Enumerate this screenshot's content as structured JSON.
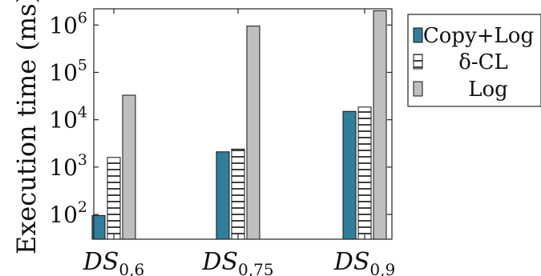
{
  "chart_data": {
    "type": "bar",
    "ylabel": "Execution time (ms)",
    "yscale": "log",
    "ylim": [
      30,
      2200000
    ],
    "grid": false,
    "legend_position": "right",
    "y_ticks": [
      {
        "value": 100,
        "base": "10",
        "exp": "2"
      },
      {
        "value": 1000,
        "base": "10",
        "exp": "3"
      },
      {
        "value": 10000,
        "base": "10",
        "exp": "4"
      },
      {
        "value": 100000,
        "base": "10",
        "exp": "5"
      },
      {
        "value": 1000000,
        "base": "10",
        "exp": "6"
      }
    ],
    "categories": [
      {
        "main": "DS",
        "sub": "0,6"
      },
      {
        "main": "DS",
        "sub": "0,75"
      },
      {
        "main": "DS",
        "sub": "0,9"
      }
    ],
    "series": [
      {
        "name": "Copy+Log",
        "values": [
          95,
          2100,
          15000
        ],
        "color": "#2f7f9a",
        "pattern": "solid"
      },
      {
        "name": "δ-CL",
        "values": [
          1600,
          2400,
          18500
        ],
        "color": "#ffffff",
        "pattern": "horizontal-lines"
      },
      {
        "name": "Log",
        "values": [
          33000,
          950000,
          2000000
        ],
        "color": "#bfbfbf",
        "pattern": "solid"
      }
    ]
  }
}
